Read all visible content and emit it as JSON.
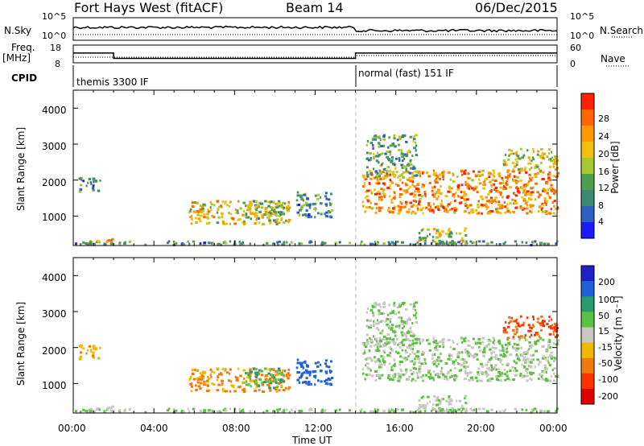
{
  "header": {
    "radar": "Fort Hays West (fitACF)",
    "beam": "Beam 14",
    "date": "06/Dec/2015"
  },
  "noise_panel": {
    "left_label": "N.Sky",
    "right_label": "N.Search",
    "left_ticks": [
      "10^5",
      "10^0"
    ],
    "right_ticks": [
      "10^5",
      "10^0"
    ]
  },
  "freq_panel": {
    "left_label_1": "Freq.",
    "left_label_2": "[MHz]",
    "right_label": "Nave",
    "left_ticks": [
      "18",
      "8"
    ],
    "right_ticks": [
      "60",
      "0"
    ]
  },
  "cpid": {
    "label": "CPID",
    "segments": [
      {
        "start_hour": 0,
        "end_hour": 14,
        "text": "themis 3300 IF"
      },
      {
        "start_hour": 14,
        "end_hour": 24,
        "text": "normal (fast) 151 IF"
      }
    ]
  },
  "xaxis": {
    "label": "Time UT",
    "ticks": [
      "00:00",
      "04:00",
      "08:00",
      "12:00",
      "16:00",
      "20:00",
      "00:00"
    ]
  },
  "power_panel": {
    "ylabel": "Slant Range [km]",
    "yticks": [
      "1000",
      "2000",
      "3000",
      "4000"
    ],
    "colorbar_label": "Power [dB]",
    "colorbar_ticks": [
      "4",
      "8",
      "12",
      "16",
      "20",
      "24",
      "28"
    ]
  },
  "velocity_panel": {
    "ylabel": "Slant Range [km]",
    "yticks": [
      "1000",
      "2000",
      "3000",
      "4000"
    ],
    "colorbar_label": "Velocity [m s⁻¹]",
    "colorbar_ticks": [
      "200",
      "100",
      "50",
      "15",
      "-15",
      "-50",
      "-100",
      "-200"
    ]
  },
  "chart_data": {
    "type": "heatmap",
    "title": "Fort Hays West (fitACF)  Beam 14  06/Dec/2015",
    "x_range_hours": [
      0,
      24
    ],
    "y_range_km": [
      180,
      4500
    ],
    "xlabel": "Time UT",
    "ylabel": "Slant Range [km]",
    "cpid_switch_hour": 14,
    "frequency_mhz": [
      {
        "start_hour": 0,
        "end_hour": 2,
        "value": 13.5
      },
      {
        "start_hour": 2,
        "end_hour": 14,
        "value": 10.5
      },
      {
        "start_hour": 14,
        "end_hour": 24,
        "value": 13.5
      }
    ],
    "power_colors": [
      "#1a1aff",
      "#2e5fc2",
      "#3d8a72",
      "#4f9e50",
      "#a6c832",
      "#f0c010",
      "#ff9900",
      "#ff6600",
      "#ff2200"
    ],
    "velocity_colors": [
      "#2020c8",
      "#2060d8",
      "#2a9a70",
      "#5cc040",
      "#c8c8c0",
      "#f0b800",
      "#f07a10",
      "#ff3300",
      "#e00000"
    ],
    "echo_regions": [
      {
        "t0": 0.3,
        "t1": 2.0,
        "r0": 230,
        "r1": 400,
        "power_db": 20,
        "velocity": -10
      },
      {
        "t0": 0.2,
        "t1": 1.3,
        "r0": 1700,
        "r1": 2100,
        "power_db": 10,
        "velocity": -60
      },
      {
        "t0": 5.7,
        "t1": 10.8,
        "r0": 800,
        "r1": 1450,
        "power_db": 20,
        "velocity": -80
      },
      {
        "t0": 8.5,
        "t1": 10.5,
        "r0": 900,
        "r1": 1450,
        "power_db": 14,
        "velocity": 30
      },
      {
        "t0": 11.0,
        "t1": 12.8,
        "r0": 1000,
        "r1": 1700,
        "power_db": 10,
        "velocity": 120
      },
      {
        "t0": 14.3,
        "t1": 24.0,
        "r0": 1100,
        "r1": 2300,
        "power_db": 24,
        "velocity": 0
      },
      {
        "t0": 21.3,
        "t1": 24.0,
        "r0": 2300,
        "r1": 2900,
        "power_db": 18,
        "velocity": -150
      },
      {
        "t0": 14.5,
        "t1": 17.0,
        "r0": 2100,
        "r1": 3300,
        "power_db": 12,
        "velocity": 0
      },
      {
        "t0": 17.0,
        "t1": 19.5,
        "r0": 250,
        "r1": 700,
        "power_db": 16,
        "velocity": -5
      },
      {
        "t0": 0.0,
        "t1": 24.0,
        "r0": 200,
        "r1": 330,
        "power_db": 10,
        "velocity": 5
      }
    ]
  }
}
